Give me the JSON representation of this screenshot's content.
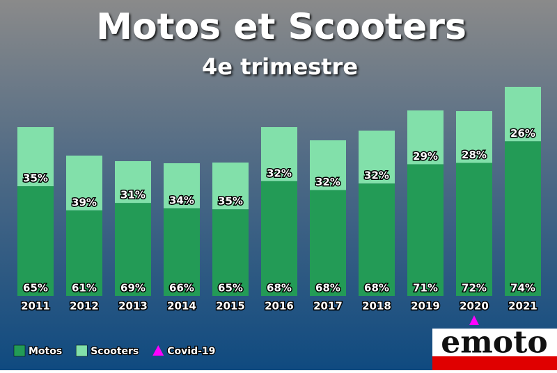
{
  "chart_data": {
    "type": "stacked_bar_percent",
    "title": "Motos et Scooters",
    "subtitle": "4e trimestre",
    "categories": [
      "2011",
      "2012",
      "2013",
      "2014",
      "2015",
      "2016",
      "2017",
      "2018",
      "2019",
      "2020",
      "2021"
    ],
    "totals": [
      243,
      202,
      194,
      191,
      192,
      243,
      224,
      238,
      267,
      266,
      301
    ],
    "ylim": [
      0,
      301
    ],
    "series": [
      {
        "name": "Motos",
        "color": "#239b56",
        "values": [
          65,
          61,
          69,
          66,
          65,
          68,
          68,
          68,
          71,
          72,
          74
        ],
        "value_labels": [
          "65%",
          "61%",
          "69%",
          "66%",
          "65%",
          "68%",
          "68%",
          "68%",
          "71%",
          "72%",
          "74%"
        ]
      },
      {
        "name": "Scooters",
        "color": "#82e0aa",
        "values": [
          35,
          39,
          31,
          34,
          35,
          32,
          32,
          32,
          29,
          28,
          26
        ],
        "value_labels": [
          "35%",
          "39%",
          "31%",
          "34%",
          "35%",
          "32%",
          "32%",
          "32%",
          "29%",
          "28%",
          "26%"
        ]
      }
    ],
    "annotation": {
      "label": "Covid-19",
      "category": "2020",
      "color": "#ff00ff"
    },
    "logo": "emoto"
  }
}
